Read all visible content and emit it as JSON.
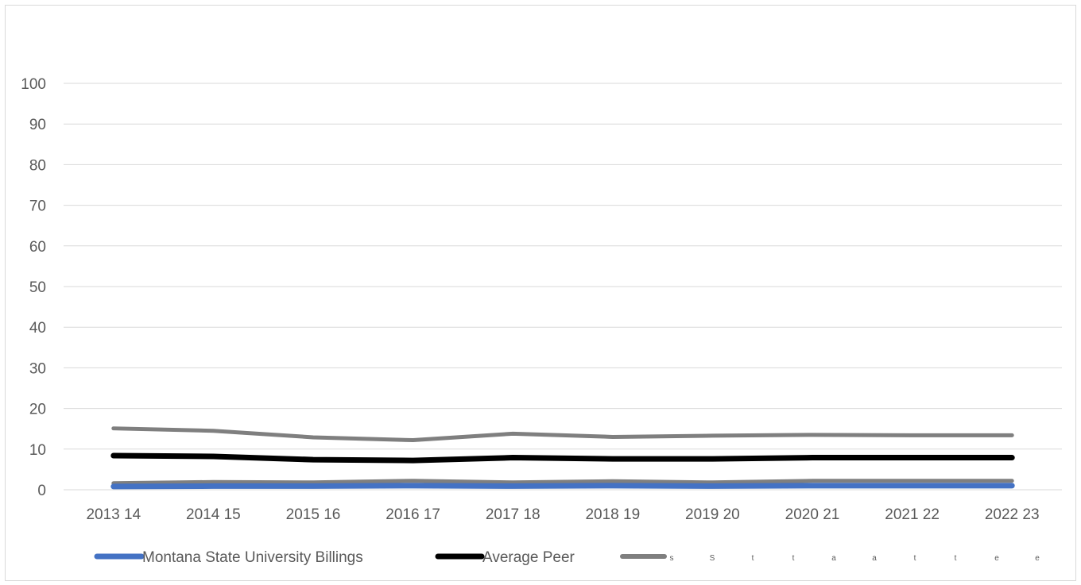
{
  "chart_data": {
    "type": "line",
    "title": "",
    "xlabel": "",
    "ylabel": "",
    "categories": [
      "2013 14",
      "2014 15",
      "2015 16",
      "2016 17",
      "2017 18",
      "2018 19",
      "2019 20",
      "2020 21",
      "2021 22",
      "2022 23"
    ],
    "ylim": [
      0,
      100
    ],
    "yticks": [
      0,
      10,
      20,
      30,
      40,
      50,
      60,
      70,
      80,
      90,
      100
    ],
    "grid": "horizontal",
    "legend_position": "bottom",
    "series": [
      {
        "name": "Montana State University Billings",
        "color": "#4472C4",
        "values": [
          0.8,
          0.9,
          0.9,
          1.0,
          0.9,
          1.0,
          0.9,
          1.0,
          1.0,
          1.0
        ]
      },
      {
        "name": "Average Peer",
        "color": "#000000",
        "values": [
          8.4,
          8.2,
          7.4,
          7.2,
          7.9,
          7.6,
          7.6,
          7.9,
          7.9,
          7.9
        ]
      },
      {
        "name": "",
        "color": "#7F7F7F",
        "values": [
          15.1,
          14.5,
          12.9,
          12.2,
          13.8,
          13.0,
          13.3,
          13.5,
          13.4,
          13.4
        ]
      },
      {
        "name": "",
        "color": "#7F7F7F",
        "values": [
          1.6,
          1.9,
          1.8,
          2.2,
          1.8,
          2.1,
          1.8,
          2.2,
          2.2,
          2.2
        ]
      }
    ],
    "legend_stray_glyphs": [
      "s",
      "S",
      "t",
      "t",
      "a",
      "a",
      "t",
      "t",
      "e",
      "e"
    ]
  }
}
